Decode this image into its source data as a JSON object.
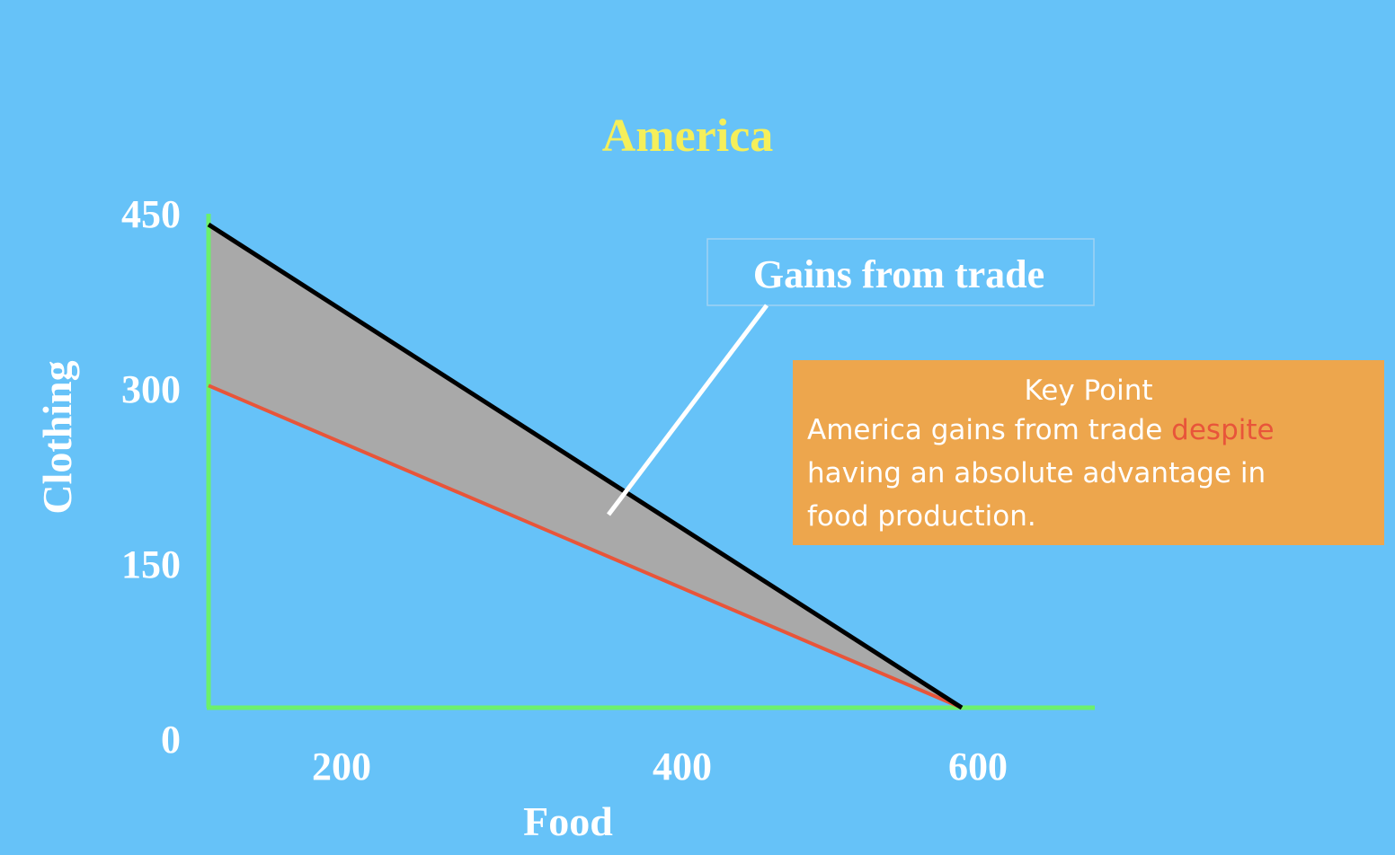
{
  "chart_data": {
    "type": "area",
    "title": "America",
    "xlabel": "Food",
    "ylabel": "Clothing",
    "x_ticks": [
      200,
      400,
      600
    ],
    "y_ticks": [
      0,
      150,
      300,
      450
    ],
    "series": [
      {
        "name": "",
        "color": "#000000",
        "x": [
          0,
          600
        ],
        "y": [
          450,
          0
        ]
      },
      {
        "name": "",
        "color": "#e8553a",
        "x": [
          0,
          600
        ],
        "y": [
          300,
          0
        ]
      }
    ],
    "shaded_region_color": "#a9a9a9",
    "axis_color": "#6cf06c",
    "annotation": "Gains from trade"
  },
  "keypoint": {
    "title": "Key Point",
    "line1_pre": "America gains from trade ",
    "line1_highlight": "despite",
    "line2": "having an absolute advantage in",
    "line3": "food production."
  },
  "colors": {
    "background": "#66c2f8",
    "title": "#f5ef5a",
    "keypoint_bg": "#eda64d",
    "highlight": "#e8553a"
  }
}
